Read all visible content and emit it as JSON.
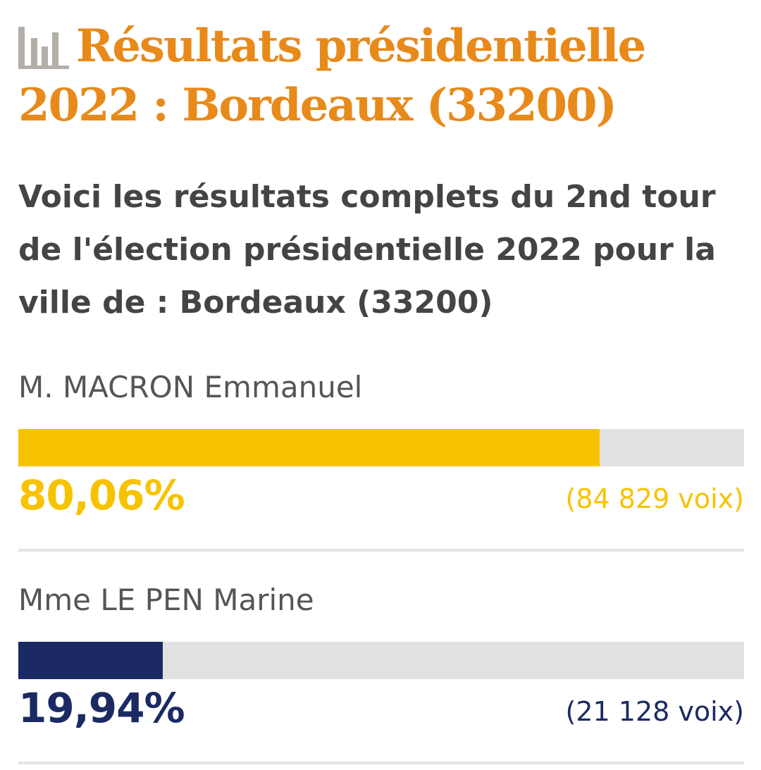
{
  "header": {
    "icon": "bar-chart-icon",
    "title": "Résultats présidentielle 2022 : Bordeaux (33200)",
    "title_color": "#e88a1a"
  },
  "intro": {
    "text": "Voici les résultats complets du 2nd tour de l'élection présidentielle 2022 pour la ville de : Bordeaux (33200)"
  },
  "results": [
    {
      "name": "M. MACRON Emmanuel",
      "percent_label": "80,06%",
      "percent": 80.06,
      "votes_label": "(84 829 voix)",
      "color": "#f7c300"
    },
    {
      "name": "Mme LE PEN Marine",
      "percent_label": "19,94%",
      "percent": 19.94,
      "votes_label": "(21 128 voix)",
      "color": "#1b2a63"
    }
  ]
}
